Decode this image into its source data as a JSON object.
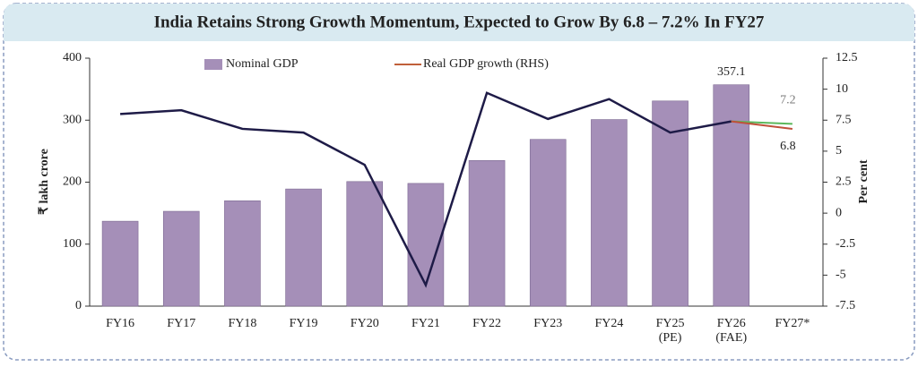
{
  "chart_data": {
    "type": "bar_line",
    "title": "India Retains Strong Growth Momentum, Expected to Grow By 6.8 – 7.2% In FY27",
    "ylabel": "₹ lakh crore",
    "y2label": "Per cent",
    "categories": [
      "FY16",
      "FY17",
      "FY18",
      "FY19",
      "FY20",
      "FY21",
      "FY22",
      "FY23",
      "FY24",
      "FY25\n(PE)",
      "FY26\n(FAE)",
      "FY27*"
    ],
    "series": [
      {
        "name": "Nominal GDP",
        "type": "bar",
        "color": "#a58fb8",
        "values": [
          137,
          153,
          170,
          189,
          201,
          198,
          235,
          269,
          301,
          331,
          357.1,
          null
        ]
      },
      {
        "name": "Real GDP growth (RHS)",
        "type": "line",
        "axis": "y2",
        "color": "#1e1b47",
        "legend_color": "#c0603a",
        "values": [
          8.0,
          8.3,
          6.8,
          6.5,
          3.9,
          -5.8,
          9.7,
          7.6,
          9.2,
          6.5,
          7.4,
          null
        ]
      }
    ],
    "projections": [
      {
        "axis": "y2",
        "color": "#5cb85c",
        "values": [
          null,
          null,
          null,
          null,
          null,
          null,
          null,
          null,
          null,
          null,
          7.4,
          7.2
        ]
      },
      {
        "axis": "y2",
        "color": "#c0503a",
        "values": [
          null,
          null,
          null,
          null,
          null,
          null,
          null,
          null,
          null,
          null,
          7.4,
          6.8
        ]
      }
    ],
    "ylim": [
      0,
      400
    ],
    "yticks": [
      0,
      100,
      200,
      300,
      400
    ],
    "y2lim": [
      -7.5,
      12.5
    ],
    "y2ticks": [
      -7.5,
      -5,
      -2.5,
      0,
      2.5,
      5,
      7.5,
      10,
      12.5
    ]
  }
}
